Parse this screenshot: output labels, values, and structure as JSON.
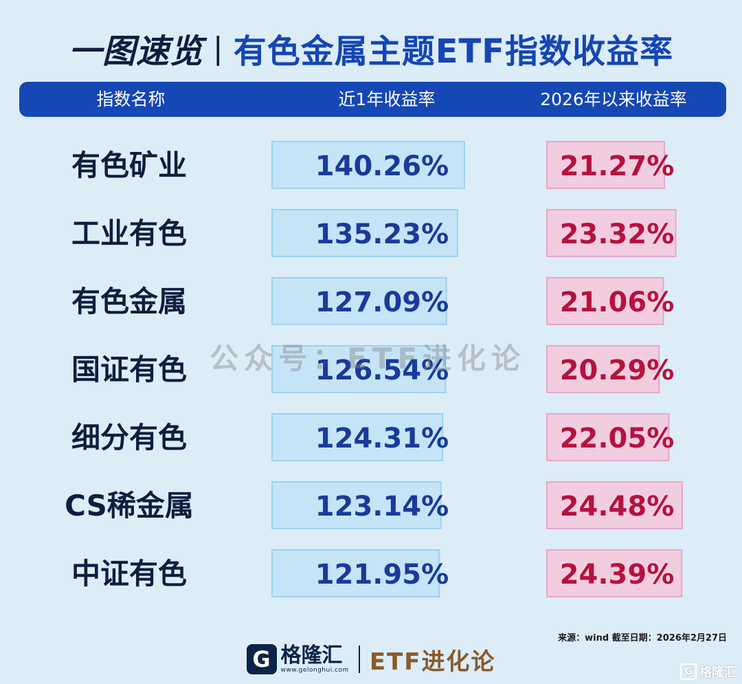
{
  "title": {
    "part1": "一图速览",
    "separator": "|",
    "part2": "有色金属主题ETF指数收益率"
  },
  "header": {
    "col1": "指数名称",
    "col2": "近1年收益率",
    "col3": "2026年以来收益率"
  },
  "watermark": "公众号：ETF进化论",
  "source": "来源：wind 截至日期：2026年2月27日",
  "footer": {
    "logo_icon": "G",
    "brand": "格隆汇",
    "brand_url": "www.gelonghui.com",
    "separator": "|",
    "etf": "ETF进化论"
  },
  "corner_badge": {
    "icon": "G",
    "text": "格隆汇"
  },
  "colors": {
    "background": "#dcedf8",
    "header": "#1547b5",
    "blue_text": "#1a3a9c",
    "blue_fill": "#c5e4f7",
    "blue_border": "#9cd2f0",
    "red_text": "#b5123f",
    "pink_fill": "#f2cde0",
    "pink_border": "#e6a7c5"
  },
  "chart_data": {
    "type": "bar",
    "categories": [
      "有色矿业",
      "工业有色",
      "有色金属",
      "国证有色",
      "细分有色",
      "CS稀金属",
      "中证有色"
    ],
    "series": [
      {
        "name": "近1年收益率",
        "values": [
          140.26,
          135.23,
          127.09,
          126.54,
          124.31,
          123.14,
          121.95
        ],
        "labels": [
          "140.26%",
          "135.23%",
          "127.09%",
          "126.54%",
          "124.31%",
          "123.14%",
          "121.95%"
        ]
      },
      {
        "name": "2026年以来收益率",
        "values": [
          21.27,
          23.32,
          21.06,
          20.29,
          22.05,
          24.48,
          24.39
        ],
        "labels": [
          "21.27%",
          "23.32%",
          "21.06%",
          "20.29%",
          "22.05%",
          "24.48%",
          "24.39%"
        ]
      }
    ]
  }
}
